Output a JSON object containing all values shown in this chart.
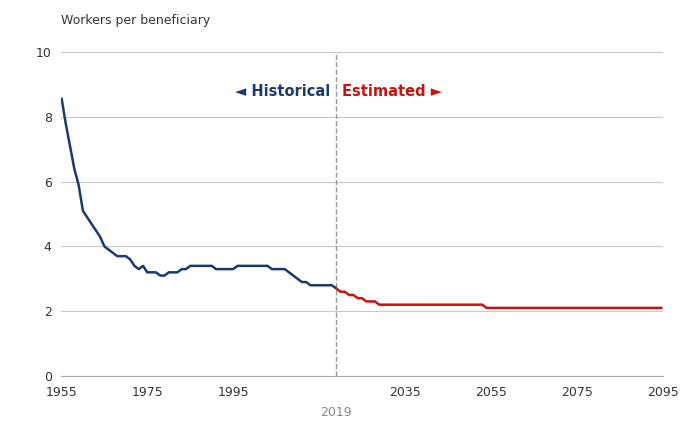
{
  "ylabel": "Workers per beneficiary",
  "ylim": [
    0,
    10
  ],
  "yticks": [
    0,
    2,
    4,
    6,
    8,
    10
  ],
  "xlim": [
    1955,
    2095
  ],
  "xticks": [
    1955,
    1975,
    1995,
    2035,
    2055,
    2075,
    2095
  ],
  "xticklabels": [
    "1955",
    "1975",
    "1995",
    "2035",
    "2055",
    "2075",
    "2095"
  ],
  "divider_year": 2019,
  "divider_label": "2019",
  "historical_color": "#1a3a6e",
  "estimated_color": "#cc1111",
  "historical_label": "◄ Historical",
  "estimated_label": "Estimated ►",
  "historical_data": [
    [
      1955,
      8.6
    ],
    [
      1956,
      7.8
    ],
    [
      1957,
      7.1
    ],
    [
      1958,
      6.4
    ],
    [
      1959,
      5.9
    ],
    [
      1960,
      5.1
    ],
    [
      1961,
      4.9
    ],
    [
      1962,
      4.7
    ],
    [
      1963,
      4.5
    ],
    [
      1964,
      4.3
    ],
    [
      1965,
      4.0
    ],
    [
      1966,
      3.9
    ],
    [
      1967,
      3.8
    ],
    [
      1968,
      3.7
    ],
    [
      1969,
      3.7
    ],
    [
      1970,
      3.7
    ],
    [
      1971,
      3.6
    ],
    [
      1972,
      3.4
    ],
    [
      1973,
      3.3
    ],
    [
      1974,
      3.4
    ],
    [
      1975,
      3.2
    ],
    [
      1976,
      3.2
    ],
    [
      1977,
      3.2
    ],
    [
      1978,
      3.1
    ],
    [
      1979,
      3.1
    ],
    [
      1980,
      3.2
    ],
    [
      1981,
      3.2
    ],
    [
      1982,
      3.2
    ],
    [
      1983,
      3.3
    ],
    [
      1984,
      3.3
    ],
    [
      1985,
      3.4
    ],
    [
      1986,
      3.4
    ],
    [
      1987,
      3.4
    ],
    [
      1988,
      3.4
    ],
    [
      1989,
      3.4
    ],
    [
      1990,
      3.4
    ],
    [
      1991,
      3.3
    ],
    [
      1992,
      3.3
    ],
    [
      1993,
      3.3
    ],
    [
      1994,
      3.3
    ],
    [
      1995,
      3.3
    ],
    [
      1996,
      3.4
    ],
    [
      1997,
      3.4
    ],
    [
      1998,
      3.4
    ],
    [
      1999,
      3.4
    ],
    [
      2000,
      3.4
    ],
    [
      2001,
      3.4
    ],
    [
      2002,
      3.4
    ],
    [
      2003,
      3.4
    ],
    [
      2004,
      3.3
    ],
    [
      2005,
      3.3
    ],
    [
      2006,
      3.3
    ],
    [
      2007,
      3.3
    ],
    [
      2008,
      3.2
    ],
    [
      2009,
      3.1
    ],
    [
      2010,
      3.0
    ],
    [
      2011,
      2.9
    ],
    [
      2012,
      2.9
    ],
    [
      2013,
      2.8
    ],
    [
      2014,
      2.8
    ],
    [
      2015,
      2.8
    ],
    [
      2016,
      2.8
    ],
    [
      2017,
      2.8
    ],
    [
      2018,
      2.8
    ],
    [
      2019,
      2.7
    ]
  ],
  "estimated_data": [
    [
      2019,
      2.7
    ],
    [
      2020,
      2.6
    ],
    [
      2021,
      2.6
    ],
    [
      2022,
      2.5
    ],
    [
      2023,
      2.5
    ],
    [
      2024,
      2.4
    ],
    [
      2025,
      2.4
    ],
    [
      2026,
      2.3
    ],
    [
      2027,
      2.3
    ],
    [
      2028,
      2.3
    ],
    [
      2029,
      2.2
    ],
    [
      2030,
      2.2
    ],
    [
      2031,
      2.2
    ],
    [
      2032,
      2.2
    ],
    [
      2033,
      2.2
    ],
    [
      2034,
      2.2
    ],
    [
      2035,
      2.2
    ],
    [
      2036,
      2.2
    ],
    [
      2037,
      2.2
    ],
    [
      2038,
      2.2
    ],
    [
      2039,
      2.2
    ],
    [
      2040,
      2.2
    ],
    [
      2041,
      2.2
    ],
    [
      2042,
      2.2
    ],
    [
      2043,
      2.2
    ],
    [
      2044,
      2.2
    ],
    [
      2045,
      2.2
    ],
    [
      2046,
      2.2
    ],
    [
      2047,
      2.2
    ],
    [
      2048,
      2.2
    ],
    [
      2049,
      2.2
    ],
    [
      2050,
      2.2
    ],
    [
      2051,
      2.2
    ],
    [
      2052,
      2.2
    ],
    [
      2053,
      2.2
    ],
    [
      2054,
      2.1
    ],
    [
      2055,
      2.1
    ],
    [
      2056,
      2.1
    ],
    [
      2057,
      2.1
    ],
    [
      2058,
      2.1
    ],
    [
      2059,
      2.1
    ],
    [
      2060,
      2.1
    ],
    [
      2061,
      2.1
    ],
    [
      2062,
      2.1
    ],
    [
      2063,
      2.1
    ],
    [
      2064,
      2.1
    ],
    [
      2065,
      2.1
    ],
    [
      2066,
      2.1
    ],
    [
      2067,
      2.1
    ],
    [
      2068,
      2.1
    ],
    [
      2069,
      2.1
    ],
    [
      2070,
      2.1
    ],
    [
      2071,
      2.1
    ],
    [
      2072,
      2.1
    ],
    [
      2073,
      2.1
    ],
    [
      2074,
      2.1
    ],
    [
      2075,
      2.1
    ],
    [
      2076,
      2.1
    ],
    [
      2077,
      2.1
    ],
    [
      2078,
      2.1
    ],
    [
      2079,
      2.1
    ],
    [
      2080,
      2.1
    ],
    [
      2081,
      2.1
    ],
    [
      2082,
      2.1
    ],
    [
      2083,
      2.1
    ],
    [
      2084,
      2.1
    ],
    [
      2085,
      2.1
    ],
    [
      2086,
      2.1
    ],
    [
      2087,
      2.1
    ],
    [
      2088,
      2.1
    ],
    [
      2089,
      2.1
    ],
    [
      2090,
      2.1
    ],
    [
      2091,
      2.1
    ],
    [
      2092,
      2.1
    ],
    [
      2093,
      2.1
    ],
    [
      2094,
      2.1
    ],
    [
      2095,
      2.1
    ]
  ],
  "background_color": "#ffffff",
  "grid_color": "#c8c8c8",
  "line_width": 1.8,
  "label_fontsize": 9,
  "tick_fontsize": 9,
  "legend_fontsize": 10.5
}
